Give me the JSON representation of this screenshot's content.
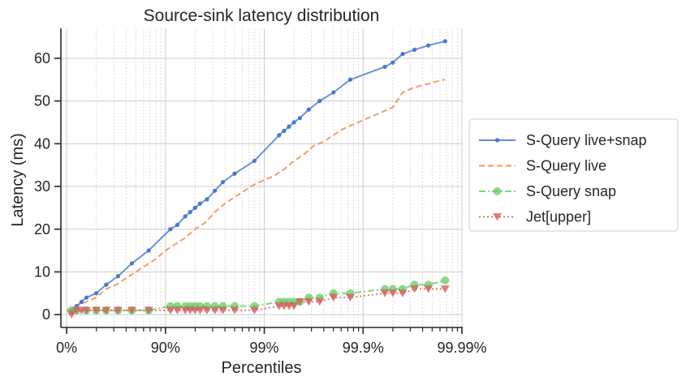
{
  "chart_data": {
    "type": "line",
    "title": "Source-sink latency distribution",
    "xlabel": "Percentiles",
    "ylabel": "Latency (ms)",
    "xscale": "log-percentile (-log10(1-p))",
    "xlim": [
      0,
      4
    ],
    "ylim": [
      -3,
      67
    ],
    "grid": true,
    "legend_position": "outside-right",
    "x_ticks": [
      {
        "value": 0,
        "label": "0%"
      },
      {
        "value": 1,
        "label": "90%"
      },
      {
        "value": 2,
        "label": "99%"
      },
      {
        "value": 3,
        "label": "99.9%"
      },
      {
        "value": 4,
        "label": "99.99%"
      }
    ],
    "y_ticks": [
      {
        "value": 0,
        "label": "0"
      },
      {
        "value": 10,
        "label": "10"
      },
      {
        "value": 20,
        "label": "20"
      },
      {
        "value": 30,
        "label": "30"
      },
      {
        "value": 40,
        "label": "40"
      },
      {
        "value": 50,
        "label": "50"
      },
      {
        "value": 60,
        "label": "60"
      }
    ],
    "series": [
      {
        "name": "S-Query live+snap",
        "color": "#4878d0",
        "dash": "solid",
        "marker": "small-dot",
        "x": [
          0.05,
          0.1,
          0.15,
          0.2,
          0.3,
          0.4,
          0.52,
          0.66,
          0.83,
          1.05,
          1.12,
          1.2,
          1.25,
          1.3,
          1.35,
          1.42,
          1.5,
          1.58,
          1.7,
          1.9,
          2.15,
          2.2,
          2.25,
          2.3,
          2.36,
          2.45,
          2.56,
          2.7,
          2.87,
          3.22,
          3.3,
          3.4,
          3.52,
          3.66,
          3.83
        ],
        "values": [
          1,
          2,
          3,
          4,
          5,
          7,
          9,
          12,
          15,
          20,
          21,
          23,
          24,
          25,
          26,
          27,
          29,
          31,
          33,
          36,
          42,
          43,
          44,
          45,
          46,
          48,
          50,
          52,
          55,
          58,
          59,
          61,
          62,
          63,
          64
        ]
      },
      {
        "name": "S-Query live",
        "color": "#ee854a",
        "dash": "dashed",
        "marker": "none",
        "x": [
          0,
          0.1,
          0.2,
          0.3,
          0.4,
          0.5,
          0.6,
          0.7,
          0.8,
          0.9,
          1.0,
          1.1,
          1.2,
          1.3,
          1.4,
          1.5,
          1.6,
          1.7,
          1.8,
          1.9,
          2.0,
          2.1,
          2.2,
          2.3,
          2.4,
          2.5,
          2.6,
          2.7,
          2.8,
          2.9,
          3.0,
          3.1,
          3.2,
          3.3,
          3.4,
          3.5,
          3.6,
          3.7,
          3.8,
          3.83
        ],
        "values": [
          1,
          2,
          3,
          4,
          6,
          7,
          8.5,
          10,
          11.5,
          13,
          15,
          16.5,
          18,
          20,
          21.5,
          24,
          26,
          27.5,
          29,
          30.5,
          31.5,
          32.5,
          34,
          36,
          37.5,
          39.5,
          40.5,
          42,
          43.5,
          44.5,
          45.5,
          46.5,
          47.5,
          48.5,
          52,
          53,
          53.7,
          54.3,
          54.9,
          55
        ]
      },
      {
        "name": "S-Query snap",
        "color": "#6acc64",
        "dash": "dashdot",
        "marker": "circle",
        "x": [
          0.05,
          0.1,
          0.2,
          0.3,
          0.4,
          0.52,
          0.66,
          0.83,
          1.05,
          1.12,
          1.2,
          1.25,
          1.3,
          1.35,
          1.42,
          1.5,
          1.58,
          1.7,
          1.9,
          2.15,
          2.2,
          2.25,
          2.3,
          2.36,
          2.45,
          2.56,
          2.7,
          2.87,
          3.22,
          3.3,
          3.4,
          3.52,
          3.66,
          3.83
        ],
        "values": [
          1,
          1,
          1,
          1,
          1,
          1,
          1,
          1,
          2,
          2,
          2,
          2,
          2,
          2,
          2,
          2,
          2,
          2,
          2,
          3,
          3,
          3,
          3,
          3,
          4,
          4,
          5,
          5,
          6,
          6,
          6,
          7,
          7,
          8
        ]
      },
      {
        "name": "Jet[upper]",
        "color": "#d65f5f",
        "dash": "dotted",
        "marker": "triangle-down",
        "x": [
          0.05,
          0.1,
          0.15,
          0.2,
          0.3,
          0.4,
          0.52,
          0.66,
          0.83,
          1.05,
          1.12,
          1.2,
          1.25,
          1.3,
          1.35,
          1.42,
          1.5,
          1.58,
          1.7,
          1.9,
          2.15,
          2.2,
          2.25,
          2.3,
          2.36,
          2.45,
          2.56,
          2.7,
          2.87,
          3.22,
          3.3,
          3.4,
          3.52,
          3.66,
          3.83
        ],
        "values": [
          0,
          1,
          1,
          1,
          1,
          1,
          1,
          1,
          1,
          1,
          1,
          1,
          1,
          1,
          1,
          1,
          1,
          1,
          1,
          1,
          2,
          2,
          2,
          2,
          3,
          3,
          3,
          4,
          4,
          5,
          5,
          5,
          6,
          6,
          6
        ]
      }
    ]
  }
}
